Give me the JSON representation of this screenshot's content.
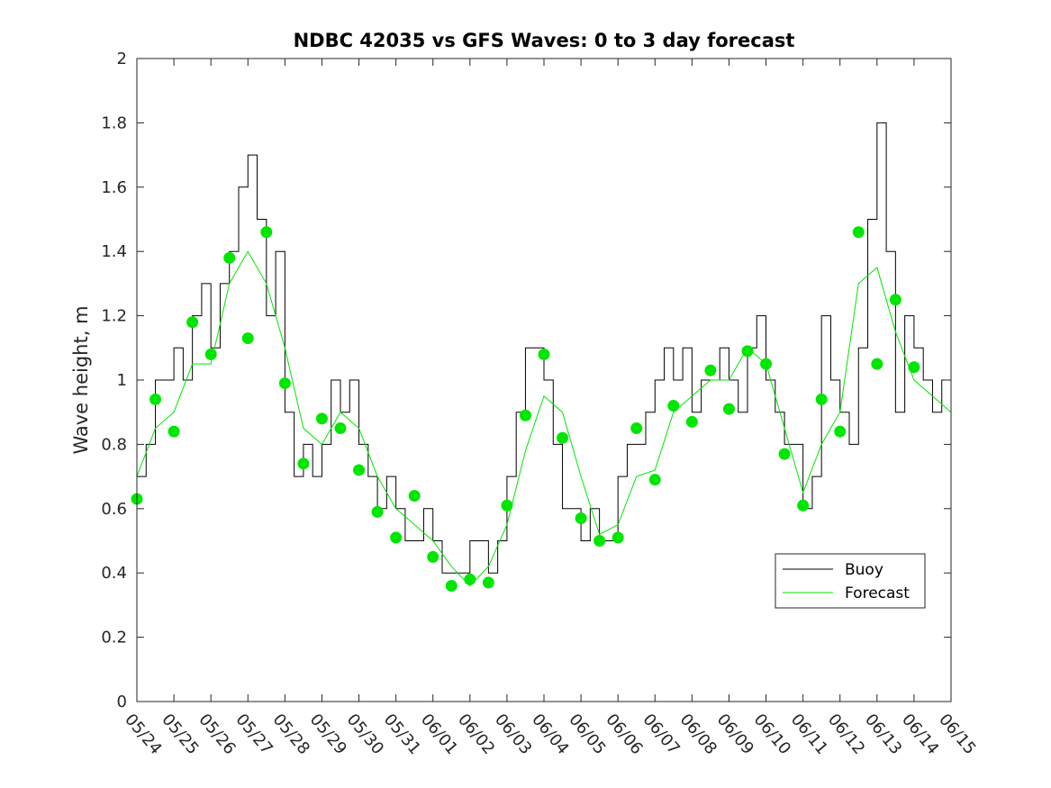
{
  "chart_data": {
    "type": "line",
    "title": "NDBC 42035 vs GFS Waves: 0 to 3 day forecast",
    "xlabel": "",
    "ylabel": "Wave height, m",
    "x_unit": "date (MM/DD)",
    "xlim": [
      "05/24",
      "06/15"
    ],
    "ylim": [
      0,
      2
    ],
    "xticks": [
      "05/24",
      "05/25",
      "05/26",
      "05/27",
      "05/28",
      "05/29",
      "05/30",
      "05/31",
      "06/01",
      "06/02",
      "06/03",
      "06/04",
      "06/05",
      "06/06",
      "06/07",
      "06/08",
      "06/09",
      "06/10",
      "06/11",
      "06/12",
      "06/13",
      "06/14",
      "06/15"
    ],
    "yticks": [
      "0",
      "0.2",
      "0.4",
      "0.6",
      "0.8",
      "1",
      "1.2",
      "1.4",
      "1.6",
      "1.8",
      "2"
    ],
    "grid": false,
    "legend": {
      "position": "lower-right",
      "entries": [
        {
          "label": "Buoy",
          "color": "#000000"
        },
        {
          "label": "Forecast",
          "color": "#00e600"
        }
      ]
    },
    "series": [
      {
        "name": "Buoy",
        "color": "#000000",
        "x": [
          "05/24 00:00",
          "05/24 06:00",
          "05/24 12:00",
          "05/24 18:00",
          "05/25 00:00",
          "05/25 06:00",
          "05/25 12:00",
          "05/25 18:00",
          "05/26 00:00",
          "05/26 06:00",
          "05/26 12:00",
          "05/26 18:00",
          "05/27 00:00",
          "05/27 06:00",
          "05/27 12:00",
          "05/27 18:00",
          "05/28 00:00",
          "05/28 06:00",
          "05/28 12:00",
          "05/28 18:00",
          "05/29 00:00",
          "05/29 06:00",
          "05/29 12:00",
          "05/29 18:00",
          "05/30 00:00",
          "05/30 06:00",
          "05/30 12:00",
          "05/30 18:00",
          "05/31 00:00",
          "05/31 06:00",
          "05/31 12:00",
          "05/31 18:00",
          "06/01 00:00",
          "06/01 06:00",
          "06/01 12:00",
          "06/01 18:00",
          "06/02 00:00",
          "06/02 06:00",
          "06/02 12:00",
          "06/02 18:00",
          "06/03 00:00",
          "06/03 06:00",
          "06/03 12:00",
          "06/03 18:00",
          "06/04 00:00",
          "06/04 06:00",
          "06/04 12:00",
          "06/04 18:00",
          "06/05 00:00",
          "06/05 06:00",
          "06/05 12:00",
          "06/05 18:00",
          "06/06 00:00",
          "06/06 06:00",
          "06/06 12:00",
          "06/06 18:00",
          "06/07 00:00",
          "06/07 06:00",
          "06/07 12:00",
          "06/07 18:00",
          "06/08 00:00",
          "06/08 06:00",
          "06/08 12:00",
          "06/08 18:00",
          "06/09 00:00",
          "06/09 06:00",
          "06/09 12:00",
          "06/09 18:00",
          "06/10 00:00",
          "06/10 06:00",
          "06/10 12:00",
          "06/10 18:00",
          "06/11 00:00",
          "06/11 06:00",
          "06/11 12:00",
          "06/11 18:00",
          "06/12 00:00",
          "06/12 06:00",
          "06/12 12:00",
          "06/12 18:00",
          "06/13 00:00",
          "06/13 06:00",
          "06/13 12:00",
          "06/13 18:00",
          "06/14 00:00",
          "06/14 06:00",
          "06/14 12:00",
          "06/14 18:00",
          "06/15 00:00"
        ],
        "y": [
          0.7,
          0.8,
          1.0,
          1.0,
          1.1,
          1.0,
          1.2,
          1.3,
          1.1,
          1.3,
          1.4,
          1.6,
          1.7,
          1.5,
          1.2,
          1.4,
          0.9,
          0.7,
          0.8,
          0.7,
          0.8,
          1.0,
          0.9,
          1.0,
          0.8,
          0.7,
          0.6,
          0.7,
          0.6,
          0.5,
          0.5,
          0.6,
          0.5,
          0.4,
          0.4,
          0.4,
          0.5,
          0.5,
          0.4,
          0.5,
          0.7,
          0.9,
          1.1,
          1.1,
          1.0,
          0.8,
          0.6,
          0.6,
          0.5,
          0.6,
          0.5,
          0.5,
          0.7,
          0.8,
          0.8,
          0.9,
          1.0,
          1.1,
          1.0,
          1.1,
          0.9,
          1.0,
          1.0,
          1.1,
          1.0,
          0.9,
          1.1,
          1.2,
          1.0,
          0.9,
          0.8,
          0.8,
          0.6,
          0.7,
          1.2,
          1.0,
          0.9,
          0.8,
          1.1,
          1.5,
          1.8,
          1.4,
          0.9,
          1.2,
          1.1,
          1.0,
          0.9,
          1.0,
          0.9
        ]
      },
      {
        "name": "Forecast",
        "color": "#00e600",
        "x": [
          "05/24 00:00",
          "05/24 12:00",
          "05/25 00:00",
          "05/25 12:00",
          "05/26 00:00",
          "05/26 12:00",
          "05/27 00:00",
          "05/27 12:00",
          "05/28 00:00",
          "05/28 12:00",
          "05/29 00:00",
          "05/29 12:00",
          "05/30 00:00",
          "05/30 12:00",
          "05/31 00:00",
          "05/31 12:00",
          "06/01 00:00",
          "06/01 12:00",
          "06/02 00:00",
          "06/02 12:00",
          "06/03 00:00",
          "06/03 12:00",
          "06/04 00:00",
          "06/04 12:00",
          "06/05 00:00",
          "06/05 12:00",
          "06/06 00:00",
          "06/06 12:00",
          "06/07 00:00",
          "06/07 12:00",
          "06/08 00:00",
          "06/08 12:00",
          "06/09 00:00",
          "06/09 12:00",
          "06/10 00:00",
          "06/10 12:00",
          "06/11 00:00",
          "06/11 12:00",
          "06/12 00:00",
          "06/12 12:00",
          "06/13 00:00",
          "06/13 12:00",
          "06/14 00:00",
          "06/14 12:00",
          "06/15 00:00"
        ],
        "y": [
          0.7,
          0.85,
          0.9,
          1.05,
          1.05,
          1.3,
          1.4,
          1.3,
          1.1,
          0.85,
          0.8,
          0.9,
          0.85,
          0.7,
          0.6,
          0.55,
          0.5,
          0.42,
          0.36,
          0.42,
          0.55,
          0.78,
          0.95,
          0.9,
          0.7,
          0.52,
          0.55,
          0.7,
          0.72,
          0.9,
          0.95,
          1.0,
          1.0,
          1.1,
          1.05,
          0.85,
          0.65,
          0.8,
          0.9,
          1.3,
          1.35,
          1.15,
          1.0,
          0.95,
          0.9
        ]
      }
    ],
    "markers": {
      "name": "Forecast analysis points",
      "color": "#00e600",
      "x": [
        "05/24 00:00",
        "05/24 12:00",
        "05/25 00:00",
        "05/25 12:00",
        "05/26 00:00",
        "05/26 12:00",
        "05/27 00:00",
        "05/27 12:00",
        "05/28 00:00",
        "05/28 12:00",
        "05/29 00:00",
        "05/29 12:00",
        "05/30 00:00",
        "05/30 12:00",
        "05/31 00:00",
        "05/31 12:00",
        "06/01 00:00",
        "06/01 12:00",
        "06/02 00:00",
        "06/02 12:00",
        "06/03 00:00",
        "06/03 12:00",
        "06/04 00:00",
        "06/04 12:00",
        "06/05 00:00",
        "06/05 12:00",
        "06/06 00:00",
        "06/06 12:00",
        "06/07 00:00",
        "06/07 12:00",
        "06/08 00:00",
        "06/08 12:00",
        "06/09 00:00",
        "06/09 12:00",
        "06/10 00:00",
        "06/10 12:00",
        "06/11 00:00",
        "06/11 12:00",
        "06/12 00:00",
        "06/12 12:00",
        "06/13 00:00",
        "06/13 12:00",
        "06/14 00:00"
      ],
      "y": [
        0.63,
        0.94,
        0.84,
        1.18,
        1.08,
        1.38,
        1.13,
        1.46,
        0.99,
        0.74,
        0.88,
        0.85,
        0.72,
        0.59,
        0.51,
        0.64,
        0.45,
        0.36,
        0.38,
        0.37,
        0.61,
        0.89,
        1.08,
        0.82,
        0.57,
        0.5,
        0.51,
        0.85,
        0.69,
        0.92,
        0.87,
        1.03,
        0.91,
        1.09,
        1.05,
        0.77,
        0.61,
        0.94,
        0.84,
        1.46,
        1.05,
        1.25,
        1.04
      ]
    }
  }
}
